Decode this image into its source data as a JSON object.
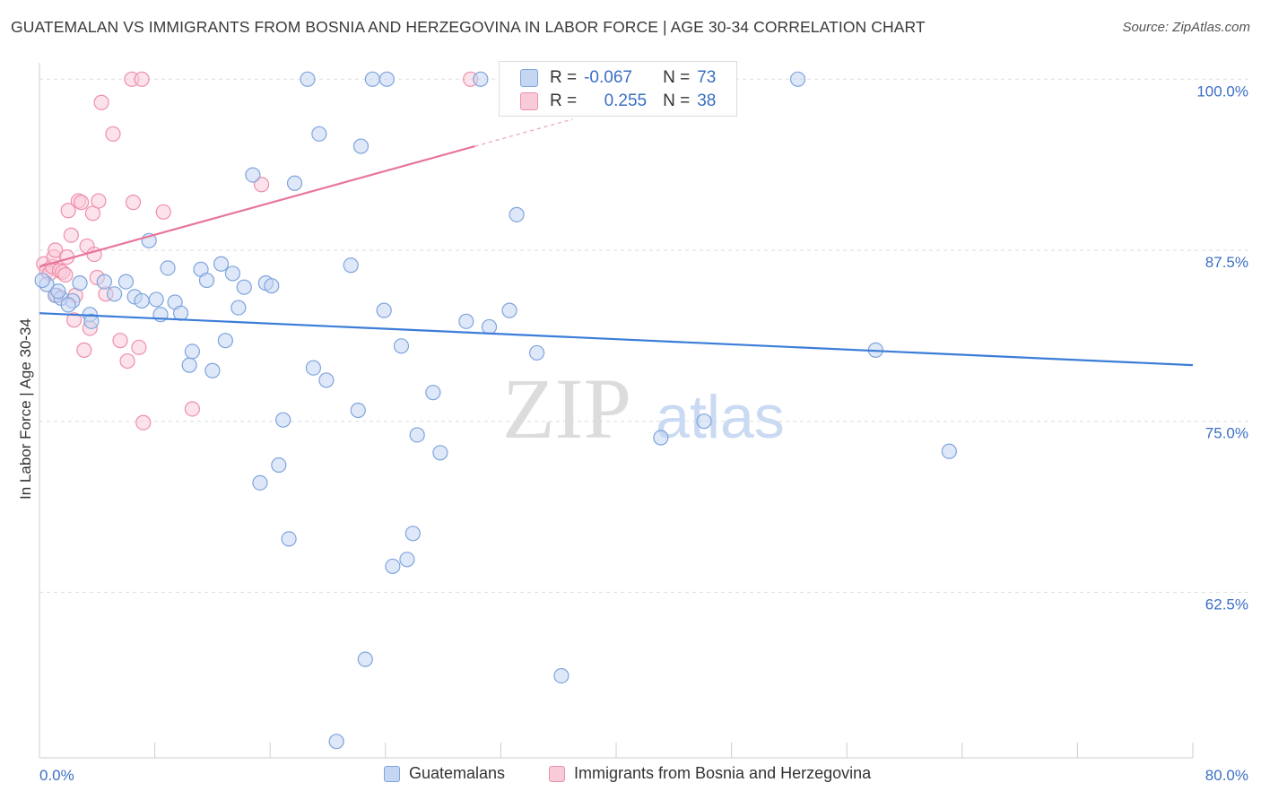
{
  "header": {
    "title": "GUATEMALAN VS IMMIGRANTS FROM BOSNIA AND HERZEGOVINA IN LABOR FORCE | AGE 30-34 CORRELATION CHART",
    "source": "Source: ZipAtlas.com"
  },
  "watermark": {
    "zip": "ZIP",
    "atlas": "atlas"
  },
  "stats_box": {
    "rows": [
      {
        "r_label": "R =",
        "r_value": "-0.067",
        "n_label": "N =",
        "n_value": "73"
      },
      {
        "r_label": "R =",
        "r_value": "0.255",
        "n_label": "N =",
        "n_value": "38"
      }
    ]
  },
  "legend": {
    "items": [
      {
        "label": "Guatemalans",
        "fill": "#c5d6f2",
        "stroke": "#7ea4dd"
      },
      {
        "label": "Immigrants from Bosnia and Herzegovina",
        "fill": "#f9cbd8",
        "stroke": "#ee8fab"
      }
    ]
  },
  "colors": {
    "blue_fill": "#c5d6f2",
    "blue_stroke": "#7ea4dd",
    "blue_line": "#3b7dd8",
    "pink_fill": "#f9cbd8",
    "pink_stroke": "#ee8fab",
    "pink_line": "#e8749a",
    "tick_label": "#3b6fc4",
    "grid": "#dddddd"
  },
  "chart_data": {
    "type": "scatter",
    "title": "GUATEMALAN VS IMMIGRANTS FROM BOSNIA AND HERZEGOVINA IN LABOR FORCE | AGE 30-34 CORRELATION CHART",
    "xlabel": "",
    "ylabel": "In Labor Force | Age 30-34",
    "xlim": [
      0,
      80
    ],
    "ylim": [
      50.4,
      101.2
    ],
    "x_tick_labels": [
      {
        "value": 0,
        "label": "0.0%"
      },
      {
        "value": 80,
        "label": "80.0%"
      }
    ],
    "y_tick_labels": [
      {
        "value": 100.0,
        "label": "100.0%"
      },
      {
        "value": 87.5,
        "label": "87.5%"
      },
      {
        "value": 75.0,
        "label": "75.0%"
      },
      {
        "value": 62.5,
        "label": "62.5%"
      }
    ],
    "grid": "horizontal dashed",
    "legend_position": "bottom",
    "series": [
      {
        "name": "Guatemalans",
        "points": [
          [
            0.5,
            85.0
          ],
          [
            1.1,
            84.2
          ],
          [
            1.5,
            84.0
          ],
          [
            2.3,
            83.8
          ],
          [
            2.8,
            85.1
          ],
          [
            3.5,
            82.8
          ],
          [
            3.6,
            82.3
          ],
          [
            4.5,
            85.2
          ],
          [
            5.2,
            84.3
          ],
          [
            6.0,
            85.2
          ],
          [
            6.6,
            84.1
          ],
          [
            7.1,
            83.8
          ],
          [
            7.6,
            88.2
          ],
          [
            8.1,
            83.9
          ],
          [
            8.4,
            82.8
          ],
          [
            8.9,
            86.2
          ],
          [
            9.4,
            83.7
          ],
          [
            9.8,
            82.9
          ],
          [
            10.4,
            79.1
          ],
          [
            10.6,
            80.1
          ],
          [
            11.2,
            86.1
          ],
          [
            11.6,
            85.3
          ],
          [
            12.0,
            78.7
          ],
          [
            12.6,
            86.5
          ],
          [
            12.9,
            80.9
          ],
          [
            13.4,
            85.8
          ],
          [
            13.8,
            83.3
          ],
          [
            14.2,
            84.8
          ],
          [
            14.8,
            93.0
          ],
          [
            15.3,
            70.5
          ],
          [
            15.7,
            85.1
          ],
          [
            16.1,
            84.9
          ],
          [
            16.6,
            71.8
          ],
          [
            16.9,
            75.1
          ],
          [
            17.3,
            66.4
          ],
          [
            17.7,
            92.4
          ],
          [
            18.6,
            100.0
          ],
          [
            19.0,
            78.9
          ],
          [
            19.4,
            96.0
          ],
          [
            19.9,
            78.0
          ],
          [
            20.6,
            51.6
          ],
          [
            21.6,
            86.4
          ],
          [
            22.1,
            75.8
          ],
          [
            22.3,
            95.1
          ],
          [
            22.6,
            57.6
          ],
          [
            23.1,
            100.0
          ],
          [
            23.9,
            83.1
          ],
          [
            24.1,
            100.0
          ],
          [
            24.5,
            64.4
          ],
          [
            25.1,
            80.5
          ],
          [
            25.5,
            64.9
          ],
          [
            25.9,
            66.8
          ],
          [
            26.2,
            74.0
          ],
          [
            27.3,
            77.1
          ],
          [
            27.8,
            72.7
          ],
          [
            29.6,
            82.3
          ],
          [
            30.6,
            100.0
          ],
          [
            31.2,
            81.9
          ],
          [
            32.6,
            83.1
          ],
          [
            33.1,
            90.1
          ],
          [
            34.5,
            80.0
          ],
          [
            36.2,
            56.4
          ],
          [
            36.8,
            100.0
          ],
          [
            43.1,
            73.8
          ],
          [
            43.6,
            100.0
          ],
          [
            46.1,
            75.0
          ],
          [
            52.6,
            100.0
          ],
          [
            58.0,
            80.2
          ],
          [
            63.1,
            72.8
          ],
          [
            0.2,
            85.3
          ],
          [
            1.3,
            84.5
          ],
          [
            2.0,
            83.5
          ],
          [
            40.0,
            100.0
          ]
        ]
      },
      {
        "name": "Immigrants from Bosnia and Herzegovina",
        "points": [
          [
            0.3,
            86.5
          ],
          [
            0.5,
            86.0
          ],
          [
            0.7,
            85.8
          ],
          [
            0.9,
            86.3
          ],
          [
            1.0,
            87.0
          ],
          [
            1.1,
            87.5
          ],
          [
            1.2,
            84.2
          ],
          [
            1.4,
            86.0
          ],
          [
            1.6,
            85.9
          ],
          [
            1.8,
            85.7
          ],
          [
            1.9,
            87.0
          ],
          [
            2.0,
            90.4
          ],
          [
            2.2,
            88.6
          ],
          [
            2.4,
            82.4
          ],
          [
            2.5,
            84.2
          ],
          [
            2.7,
            91.1
          ],
          [
            2.9,
            91.0
          ],
          [
            3.1,
            80.2
          ],
          [
            3.3,
            87.8
          ],
          [
            3.5,
            81.8
          ],
          [
            3.7,
            90.2
          ],
          [
            3.8,
            87.2
          ],
          [
            4.1,
            91.1
          ],
          [
            4.3,
            98.3
          ],
          [
            4.6,
            84.3
          ],
          [
            5.1,
            96.0
          ],
          [
            5.6,
            80.9
          ],
          [
            6.1,
            79.4
          ],
          [
            6.4,
            100.0
          ],
          [
            6.5,
            91.0
          ],
          [
            6.9,
            80.4
          ],
          [
            7.1,
            100.0
          ],
          [
            7.2,
            74.9
          ],
          [
            8.6,
            90.3
          ],
          [
            10.6,
            75.9
          ],
          [
            15.4,
            92.3
          ],
          [
            29.9,
            100.0
          ],
          [
            4.0,
            85.5
          ]
        ]
      }
    ],
    "trendlines": [
      {
        "series": "Guatemalans",
        "x": [
          0,
          80
        ],
        "y": [
          82.9,
          79.1
        ]
      },
      {
        "series": "Immigrants from Bosnia and Herzegovina",
        "x": [
          0,
          30.2
        ],
        "y": [
          86.3,
          95.1
        ],
        "dashed_extension_to_x": 37
      }
    ]
  }
}
